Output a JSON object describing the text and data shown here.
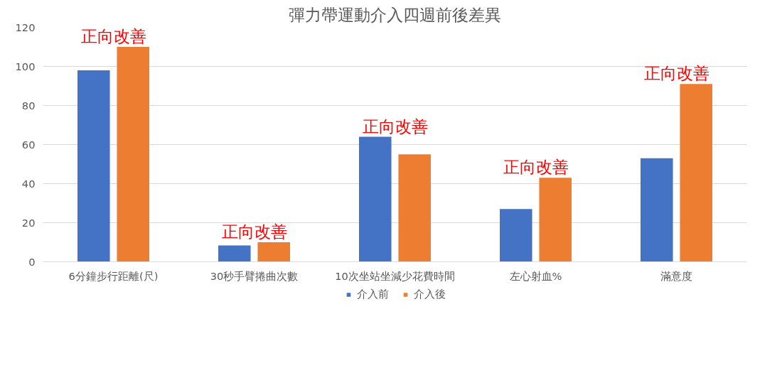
{
  "chart_data": {
    "type": "bar",
    "title": "彈力帶運動介入四週前後差異",
    "categories": [
      "6分鐘步行距離(尺)",
      "30秒手臂捲曲次數",
      "10次坐站坐減少花費時間",
      "左心射血%",
      "滿意度"
    ],
    "series": [
      {
        "name": "介入前",
        "color": "#4472c4",
        "values": [
          98,
          8.4,
          64,
          27,
          53
        ]
      },
      {
        "name": "介入後",
        "color": "#ed7d31",
        "values": [
          110,
          10,
          55,
          43,
          91
        ]
      }
    ],
    "ylim": [
      0,
      120
    ],
    "yticks": [
      0,
      20,
      40,
      60,
      80,
      100,
      120
    ],
    "grid": "y",
    "legend": "bottom",
    "annotations": [
      "正向改善",
      "正向改善",
      "正向改善",
      "正向改善",
      "正向改善"
    ]
  }
}
